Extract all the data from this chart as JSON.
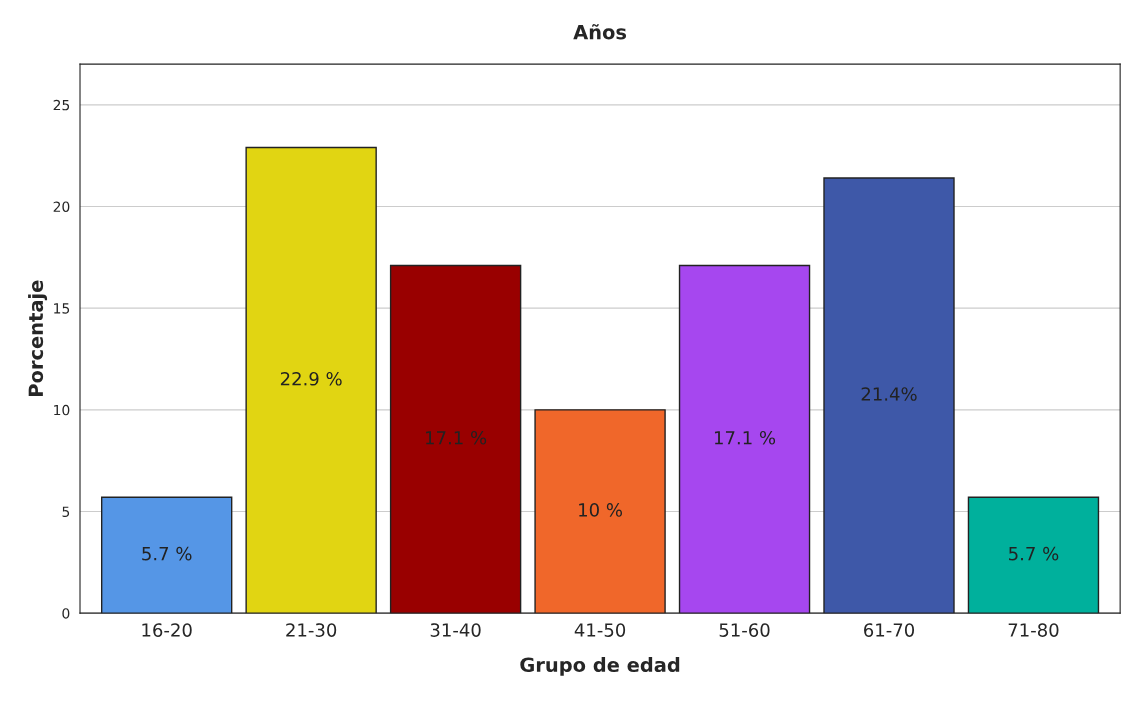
{
  "chart_data": {
    "type": "bar",
    "title": "Años",
    "xlabel": "Grupo de edad",
    "ylabel": "Porcentaje",
    "categories": [
      "16-20",
      "21-30",
      "31-40",
      "41-50",
      "51-60",
      "61-70",
      "71-80"
    ],
    "values": [
      5.7,
      22.9,
      17.1,
      10,
      17.1,
      21.4,
      5.7
    ],
    "value_labels": [
      "5.7 %",
      "22.9 %",
      "17.1 %",
      "10 %",
      "17.1 %",
      "21.4%",
      "5.7 %"
    ],
    "colors": [
      "#5596e6",
      "#e1d512",
      "#990000",
      "#f0672a",
      "#a647ef",
      "#3e58a8",
      "#00b09c"
    ],
    "ylim": [
      0,
      27
    ],
    "yticks": [
      0,
      5,
      10,
      15,
      20,
      25
    ],
    "grid": "y",
    "legend": false
  }
}
